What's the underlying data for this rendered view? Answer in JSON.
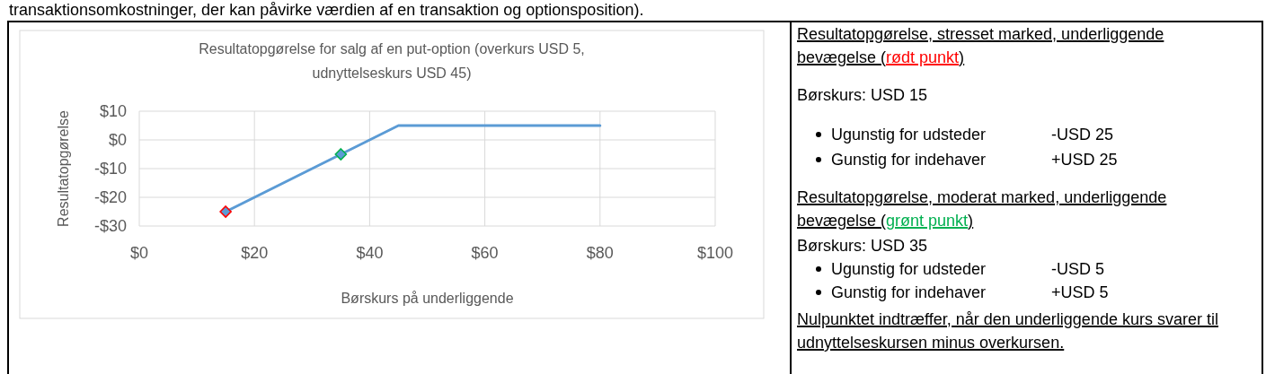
{
  "chart_data": [
    {
      "type": "line",
      "title": "Resultatopgørelse for salg af en put-option (overkurs USD 5, udnyttelseskurs USD 45)",
      "xlabel": "Børskurs på underliggende",
      "ylabel": "Resultatopgørelse",
      "xlim": [
        0,
        100
      ],
      "xticks": [
        {
          "value": 0,
          "label": "$0"
        },
        {
          "value": 20,
          "label": "$20"
        },
        {
          "value": 40,
          "label": "$40"
        },
        {
          "value": 60,
          "label": "$60"
        },
        {
          "value": 80,
          "label": "$80"
        },
        {
          "value": 100,
          "label": "$100"
        }
      ],
      "ylim": [
        -30,
        10
      ],
      "yticks": [
        {
          "value": -30,
          "label": "-$30"
        },
        {
          "value": -20,
          "label": "-$20"
        },
        {
          "value": -10,
          "label": "-$10"
        },
        {
          "value": 0,
          "label": "$0"
        },
        {
          "value": 10,
          "label": "$10"
        }
      ],
      "grid": true,
      "series": [
        {
          "type": "line",
          "color": "#5b9bd5",
          "x": [
            15,
            45,
            80
          ],
          "values": [
            -25,
            5,
            5
          ],
          "marker": "none"
        },
        {
          "type": "scatter",
          "color": "#ff0000",
          "x": [
            15
          ],
          "values": [
            -25
          ],
          "marker": "diamond"
        },
        {
          "type": "scatter",
          "color": "#00b050",
          "x": [
            35
          ],
          "values": [
            -5
          ],
          "marker": "diamond"
        }
      ]
    },
    {
      "type": "other",
      "annotations": [
        "transaktionsomkostninger, der kan påvirke værdien af en transaktion og optionsposition).",
        "Resultatopgørelse, stresset marked, underliggende",
        "bevægelse (",
        "rødt punkt",
        ")",
        "Børskurs: USD 15",
        "Ugunstig for udsteder",
        "-USD 25",
        "Gunstig for indehaver",
        "+USD 25",
        "Resultatopgørelse, moderat marked, underliggende",
        "bevægelse (",
        "grønt punkt",
        ")",
        "Børskurs: USD 35",
        "Ugunstig for udsteder",
        "-USD 5",
        "Gunstig for indehaver",
        "+USD 5",
        "Nulpunktet indtræffer, når den underliggende kurs svarer til",
        "udnyttelseskursen minus overkursen."
      ],
      "colors": [
        "#000000",
        "#000000",
        "#000000",
        "#ff0000",
        "#000000",
        "#000000",
        "#000000",
        "#000000",
        "#000000",
        "#000000",
        "#000000",
        "#000000",
        "#00b050",
        "#000000",
        "#000000",
        "#000000",
        "#000000",
        "#000000",
        "#000000",
        "#000000",
        "#000000"
      ]
    }
  ]
}
